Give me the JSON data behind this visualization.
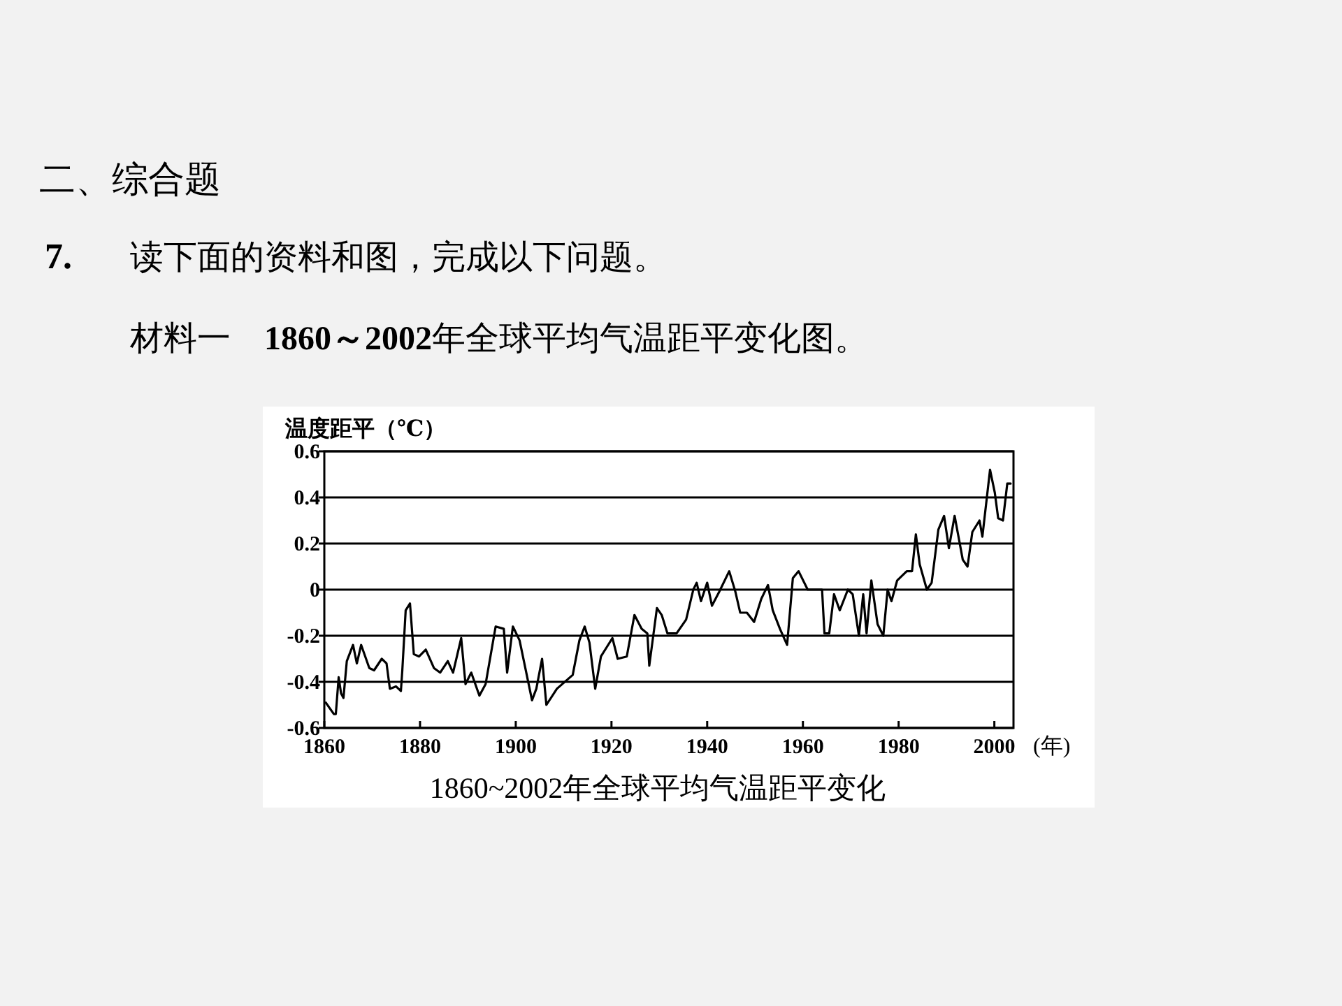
{
  "chart_data": {
    "type": "line",
    "title": "1860~2002年全球平均气温距平变化",
    "xlabel": "(年)",
    "ylabel": "温度距平（℃）",
    "annotations": [
      "二、综合题",
      "7.",
      "读下面的资料和图，完成以下问题。",
      "材料一　1860～2002年全球平均气温距平变化图。"
    ],
    "xlim": [
      1860,
      2004
    ],
    "xticks": [
      1860,
      1880,
      1900,
      1920,
      1940,
      1960,
      1980,
      2000
    ],
    "ylim": [
      -0.6,
      0.6
    ],
    "yticks": [
      -0.6,
      -0.4,
      -0.2,
      0,
      0.2,
      0.4,
      0.6
    ],
    "grid": "y",
    "marker": "none",
    "line_style": "solid",
    "series": [
      {
        "color": "#000000",
        "x": [
          1860.3,
          1862,
          1862.4,
          1863,
          1863.5,
          1864,
          1864.7,
          1866,
          1866.8,
          1867.7,
          1869.4,
          1870.4,
          1872,
          1873,
          1873.7,
          1875,
          1876,
          1876.3,
          1877,
          1877.9,
          1878.7,
          1879.8,
          1881.2,
          1882.9,
          1884.2,
          1885.8,
          1886.9,
          1888.6,
          1889.5,
          1890.7,
          1892.4,
          1893.7,
          1895.8,
          1897.5,
          1898.2,
          1899.4,
          1900.8,
          1903.4,
          1904.3,
          1905.5,
          1906.4,
          1908.6,
          1911.9,
          1913.3,
          1914.4,
          1915.4,
          1916.6,
          1917.8,
          1919,
          1920.2,
          1921.3,
          1923.2,
          1924.8,
          1926.3,
          1927.5,
          1927.9,
          1929.5,
          1930.5,
          1931.7,
          1933.6,
          1935.6,
          1937.1,
          1937.8,
          1938.7,
          1940,
          1941,
          1942.5,
          1944.6,
          1945.9,
          1946.9,
          1948.3,
          1949.8,
          1951.3,
          1952.7,
          1953.7,
          1955.2,
          1956.7,
          1957.9,
          1959.1,
          1961,
          1964,
          1964.5,
          1965.5,
          1966.5,
          1967.7,
          1969.4,
          1970.4,
          1971.7,
          1972.6,
          1973.3,
          1974.3,
          1975.6,
          1976.8,
          1977.7,
          1978.5,
          1979.7,
          1981.7,
          1982.8,
          1983.6,
          1984.4,
          1985.9,
          1986.9,
          1988.3,
          1989.5,
          1990.5,
          1991.7,
          1993.4,
          1994.4,
          1995.4,
          1996.9,
          1997.5,
          1999.1,
          2000.1,
          2000.8,
          2001.8,
          2002.7,
          2003.4
        ],
        "values": [
          -0.49,
          -0.54,
          -0.54,
          -0.38,
          -0.45,
          -0.47,
          -0.31,
          -0.24,
          -0.32,
          -0.24,
          -0.34,
          -0.35,
          -0.3,
          -0.32,
          -0.43,
          -0.42,
          -0.44,
          -0.35,
          -0.09,
          -0.06,
          -0.28,
          -0.29,
          -0.26,
          -0.34,
          -0.36,
          -0.31,
          -0.36,
          -0.21,
          -0.41,
          -0.36,
          -0.46,
          -0.41,
          -0.16,
          -0.17,
          -0.36,
          -0.16,
          -0.22,
          -0.48,
          -0.43,
          -0.3,
          -0.5,
          -0.43,
          -0.37,
          -0.22,
          -0.16,
          -0.23,
          -0.43,
          -0.29,
          -0.25,
          -0.21,
          -0.3,
          -0.29,
          -0.11,
          -0.17,
          -0.19,
          -0.33,
          -0.08,
          -0.11,
          -0.19,
          -0.19,
          -0.13,
          0,
          0.03,
          -0.05,
          0.03,
          -0.07,
          -0.01,
          0.08,
          -0.01,
          -0.1,
          -0.1,
          -0.14,
          -0.04,
          0.02,
          -0.09,
          -0.17,
          -0.24,
          0.05,
          0.08,
          0,
          0,
          -0.19,
          -0.19,
          -0.02,
          -0.09,
          0,
          -0.02,
          -0.2,
          -0.02,
          -0.19,
          0.04,
          -0.15,
          -0.2,
          0,
          -0.05,
          0.04,
          0.08,
          0.08,
          0.24,
          0.11,
          0,
          0.03,
          0.26,
          0.32,
          0.18,
          0.32,
          0.13,
          0.1,
          0.25,
          0.3,
          0.23,
          0.52,
          0.42,
          0.31,
          0.3,
          0.46,
          0.46
        ]
      }
    ]
  }
}
